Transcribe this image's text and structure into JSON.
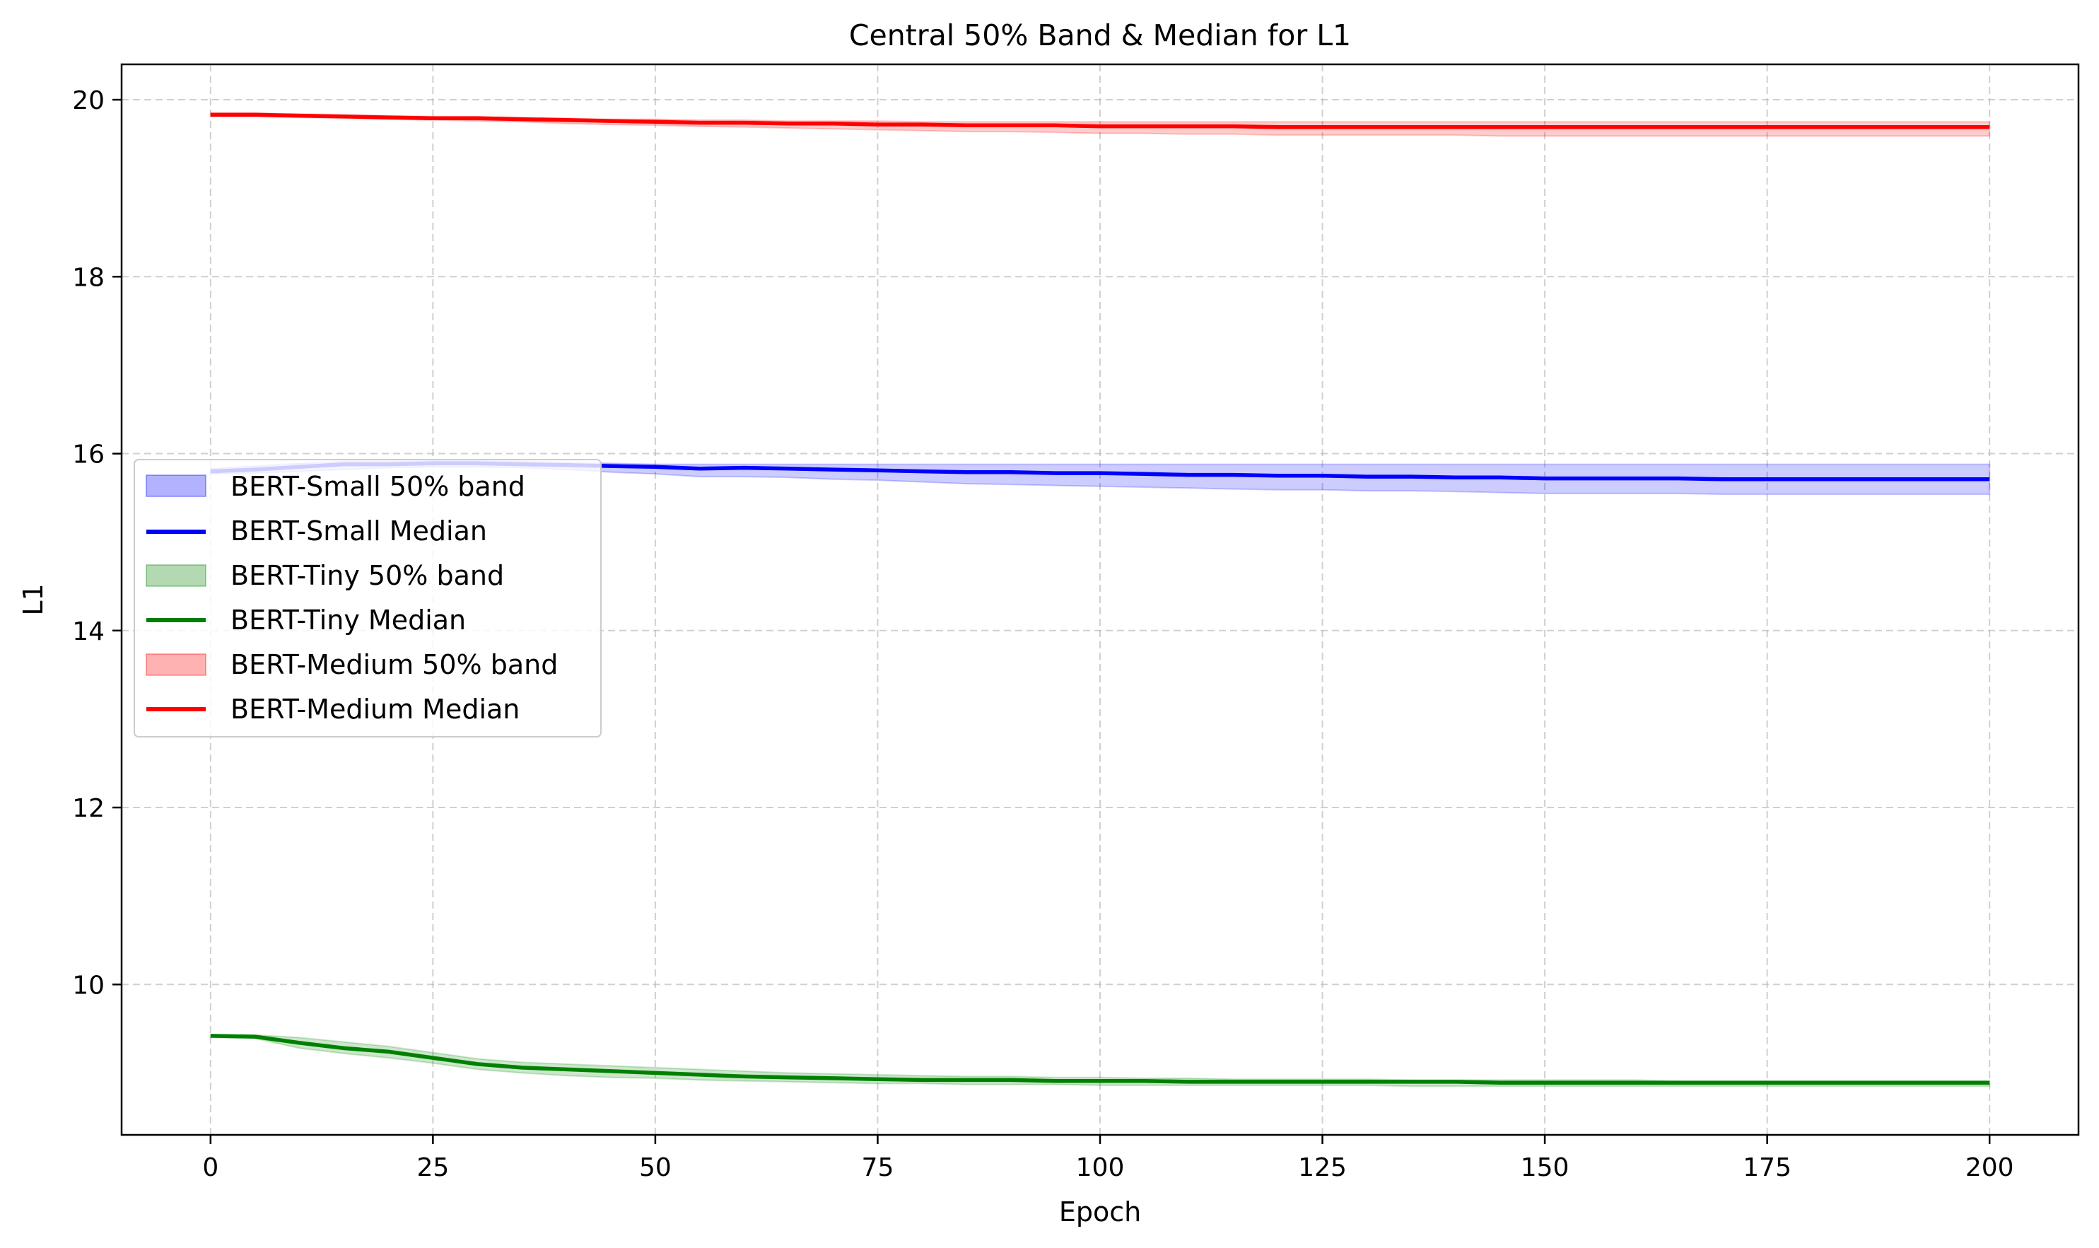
{
  "chart_data": {
    "type": "line",
    "title": "Central 50% Band & Median for L1",
    "xlabel": "Epoch",
    "ylabel": "L1",
    "xlim": [
      -10,
      210
    ],
    "ylim": [
      8.3,
      20.4
    ],
    "xticks": [
      0,
      25,
      50,
      75,
      100,
      125,
      150,
      175,
      200
    ],
    "yticks": [
      10,
      12,
      14,
      16,
      18,
      20
    ],
    "grid": true,
    "legend_position": "center-left",
    "x": [
      0,
      5,
      10,
      15,
      20,
      25,
      30,
      35,
      40,
      45,
      50,
      55,
      60,
      65,
      70,
      75,
      80,
      85,
      90,
      95,
      100,
      105,
      110,
      115,
      120,
      125,
      130,
      135,
      140,
      145,
      150,
      155,
      160,
      165,
      170,
      175,
      180,
      185,
      190,
      195,
      200
    ],
    "series": [
      {
        "name": "BERT-Small",
        "band_label": "BERT-Small 50% band",
        "median_label": "BERT-Small Median",
        "color": "#0000ff",
        "median": [
          15.8,
          15.82,
          15.85,
          15.88,
          15.88,
          15.89,
          15.89,
          15.88,
          15.87,
          15.86,
          15.85,
          15.83,
          15.84,
          15.83,
          15.82,
          15.81,
          15.8,
          15.79,
          15.79,
          15.78,
          15.78,
          15.77,
          15.76,
          15.76,
          15.75,
          15.75,
          15.74,
          15.74,
          15.73,
          15.73,
          15.72,
          15.72,
          15.72,
          15.72,
          15.71,
          15.71,
          15.71,
          15.71,
          15.71,
          15.71,
          15.71
        ],
        "q1": [
          15.77,
          15.78,
          15.8,
          15.82,
          15.84,
          15.85,
          15.85,
          15.84,
          15.82,
          15.79,
          15.77,
          15.74,
          15.74,
          15.73,
          15.71,
          15.7,
          15.68,
          15.66,
          15.65,
          15.64,
          15.63,
          15.62,
          15.61,
          15.6,
          15.59,
          15.59,
          15.58,
          15.58,
          15.57,
          15.56,
          15.55,
          15.55,
          15.55,
          15.55,
          15.54,
          15.54,
          15.54,
          15.54,
          15.54,
          15.54,
          15.54
        ],
        "q3": [
          15.83,
          15.86,
          15.89,
          15.91,
          15.91,
          15.92,
          15.92,
          15.91,
          15.9,
          15.89,
          15.88,
          15.88,
          15.88,
          15.88,
          15.88,
          15.88,
          15.88,
          15.88,
          15.88,
          15.88,
          15.88,
          15.88,
          15.88,
          15.88,
          15.88,
          15.88,
          15.88,
          15.88,
          15.88,
          15.88,
          15.88,
          15.88,
          15.88,
          15.88,
          15.88,
          15.88,
          15.88,
          15.88,
          15.88,
          15.88,
          15.88
        ]
      },
      {
        "name": "BERT-Tiny",
        "band_label": "BERT-Tiny 50% band",
        "median_label": "BERT-Tiny Median",
        "color": "#008000",
        "median": [
          9.42,
          9.41,
          9.34,
          9.28,
          9.24,
          9.17,
          9.1,
          9.06,
          9.04,
          9.02,
          9.0,
          8.98,
          8.96,
          8.95,
          8.94,
          8.93,
          8.92,
          8.92,
          8.92,
          8.91,
          8.91,
          8.91,
          8.9,
          8.9,
          8.9,
          8.9,
          8.9,
          8.9,
          8.9,
          8.89,
          8.89,
          8.89,
          8.89,
          8.89,
          8.89,
          8.89,
          8.89,
          8.89,
          8.89,
          8.89,
          8.89
        ],
        "q1": [
          9.4,
          9.39,
          9.28,
          9.22,
          9.17,
          9.11,
          9.04,
          9.0,
          8.97,
          8.95,
          8.94,
          8.92,
          8.91,
          8.9,
          8.89,
          8.88,
          8.88,
          8.87,
          8.87,
          8.87,
          8.86,
          8.86,
          8.86,
          8.86,
          8.86,
          8.86,
          8.86,
          8.85,
          8.85,
          8.85,
          8.85,
          8.85,
          8.85,
          8.85,
          8.85,
          8.85,
          8.85,
          8.85,
          8.85,
          8.85,
          8.85
        ],
        "q3": [
          9.43,
          9.43,
          9.4,
          9.35,
          9.3,
          9.23,
          9.16,
          9.12,
          9.1,
          9.08,
          9.06,
          9.04,
          9.02,
          9.0,
          8.99,
          8.98,
          8.97,
          8.96,
          8.96,
          8.95,
          8.95,
          8.94,
          8.94,
          8.93,
          8.93,
          8.93,
          8.93,
          8.92,
          8.92,
          8.92,
          8.92,
          8.92,
          8.92,
          8.91,
          8.91,
          8.91,
          8.91,
          8.91,
          8.91,
          8.91,
          8.91
        ]
      },
      {
        "name": "BERT-Medium",
        "band_label": "BERT-Medium 50% band",
        "median_label": "BERT-Medium Median",
        "color": "#ff0000",
        "median": [
          19.83,
          19.83,
          19.82,
          19.81,
          19.8,
          19.79,
          19.79,
          19.78,
          19.77,
          19.76,
          19.75,
          19.74,
          19.74,
          19.73,
          19.73,
          19.72,
          19.72,
          19.71,
          19.71,
          19.71,
          19.7,
          19.7,
          19.7,
          19.7,
          19.69,
          19.69,
          19.69,
          19.69,
          19.69,
          19.69,
          19.69,
          19.69,
          19.69,
          19.69,
          19.69,
          19.69,
          19.69,
          19.69,
          19.69,
          19.69,
          19.69
        ],
        "q1": [
          19.81,
          19.81,
          19.8,
          19.79,
          19.78,
          19.77,
          19.76,
          19.75,
          19.73,
          19.72,
          19.71,
          19.7,
          19.69,
          19.68,
          19.67,
          19.66,
          19.65,
          19.64,
          19.64,
          19.63,
          19.62,
          19.62,
          19.61,
          19.61,
          19.6,
          19.6,
          19.6,
          19.6,
          19.6,
          19.59,
          19.59,
          19.59,
          19.59,
          19.59,
          19.59,
          19.59,
          19.59,
          19.59,
          19.59,
          19.59,
          19.59
        ],
        "q3": [
          19.85,
          19.85,
          19.84,
          19.83,
          19.82,
          19.81,
          19.81,
          19.8,
          19.79,
          19.78,
          19.78,
          19.77,
          19.77,
          19.76,
          19.76,
          19.76,
          19.75,
          19.75,
          19.75,
          19.75,
          19.75,
          19.75,
          19.75,
          19.75,
          19.75,
          19.75,
          19.75,
          19.75,
          19.75,
          19.75,
          19.75,
          19.75,
          19.75,
          19.75,
          19.75,
          19.75,
          19.75,
          19.75,
          19.75,
          19.75,
          19.75
        ]
      }
    ]
  }
}
